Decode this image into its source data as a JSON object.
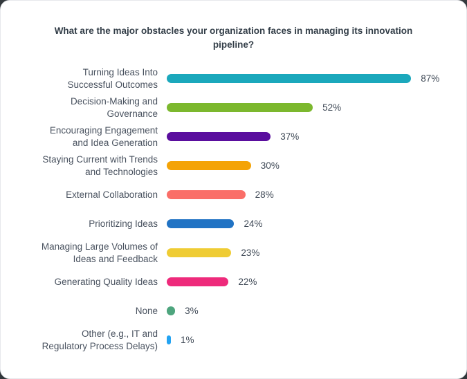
{
  "title": "What are the major obstacles your organization faces in managing its innovation\npipeline?",
  "chart_data": {
    "type": "bar",
    "orientation": "horizontal",
    "unit": "%",
    "xlim": [
      0,
      100
    ],
    "grid": false,
    "legend": "none",
    "title": "What are the major obstacles your organization faces in managing its innovation pipeline?",
    "categories": [
      "Turning Ideas Into Successful Outcomes",
      "Decision-Making and Governance",
      "Encouraging Engagement and Idea Generation",
      "Staying Current with Trends and Technologies",
      "External Collaboration",
      "Prioritizing Ideas",
      "Managing Large Volumes of Ideas and Feedback",
      "Generating Quality Ideas",
      "None",
      "Other (e.g., IT and Regulatory Process Delays)"
    ],
    "values": [
      87,
      52,
      37,
      30,
      28,
      24,
      23,
      22,
      3,
      1
    ],
    "rows": [
      {
        "label": "Turning Ideas Into\nSuccessful Outcomes",
        "value": 87,
        "display": "87%",
        "color": "#1BA8BC"
      },
      {
        "label": "Decision-Making and\nGovernance",
        "value": 52,
        "display": "52%",
        "color": "#7CB82E"
      },
      {
        "label": "Encouraging Engagement\nand Idea Generation",
        "value": 37,
        "display": "37%",
        "color": "#5A0E9E"
      },
      {
        "label": "Staying Current with Trends\nand Technologies",
        "value": 30,
        "display": "30%",
        "color": "#F4A306"
      },
      {
        "label": "External Collaboration",
        "value": 28,
        "display": "28%",
        "color": "#FA6E68"
      },
      {
        "label": "Prioritizing Ideas",
        "value": 24,
        "display": "24%",
        "color": "#2173C4"
      },
      {
        "label": "Managing Large Volumes of\nIdeas and Feedback",
        "value": 23,
        "display": "23%",
        "color": "#EFCC34"
      },
      {
        "label": "Generating Quality Ideas",
        "value": 22,
        "display": "22%",
        "color": "#EE2A7B"
      },
      {
        "label": "None",
        "value": 3,
        "display": "3%",
        "color": "#4EA57E"
      },
      {
        "label": "Other (e.g., IT and\nRegulatory Process Delays)",
        "value": 1,
        "display": "1%",
        "color": "#23A3F2"
      }
    ]
  }
}
